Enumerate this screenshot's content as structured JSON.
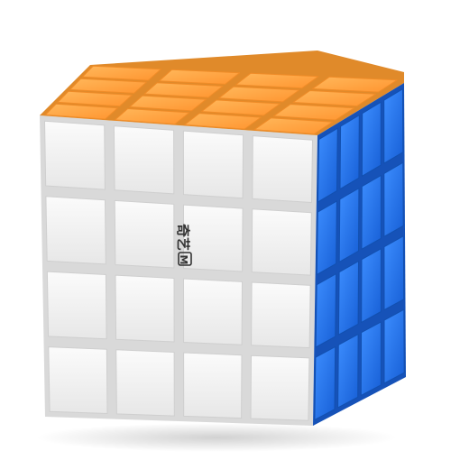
{
  "product": {
    "subject": "4x4 speed cube",
    "grid_size": 4,
    "logo": {
      "text_cn": "奇艺",
      "badge_text": "M"
    },
    "colors": {
      "top_face": "#ff9e3a",
      "top_face_light": "#ffb75a",
      "front_face": "#f3f3f3",
      "front_face_shadow": "#dcdcdc",
      "right_face": "#1d6de6",
      "right_face_light": "#3a8cff",
      "core_gap": "#d7d7d7",
      "logo": "#333333"
    }
  }
}
